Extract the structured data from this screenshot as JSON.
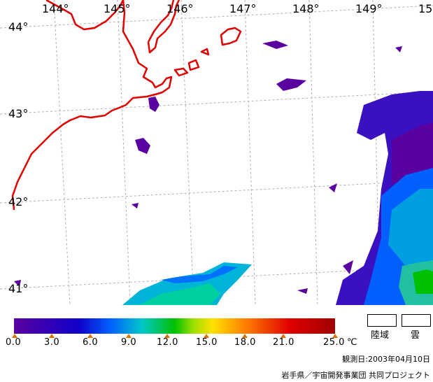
{
  "map": {
    "longitude_labels": [
      "144°",
      "145°",
      "146°",
      "147°",
      "148°",
      "149°",
      "15"
    ],
    "latitude_labels": [
      "44°",
      "43°",
      "42°",
      "41°"
    ],
    "coastline_color": "#e00000",
    "grid_color": "#b0b0b0"
  },
  "legend": {
    "tick_labels": [
      "0.0",
      "3.0",
      "6.0",
      "9.0",
      "12.0",
      "15.0",
      "18.0",
      "21.0",
      "25.0"
    ],
    "unit": "℃",
    "land_label": "陸域",
    "cloud_label": "雲",
    "colors": [
      "#5a00a0",
      "#1000c8",
      "#0060ff",
      "#00c8c8",
      "#00c000",
      "#a0e000",
      "#ffe000",
      "#ff8000",
      "#e00000",
      "#a00000"
    ]
  },
  "observation_date": "観測日:2003年04月10日",
  "credit": "岩手県／宇宙開発事業団 共同プロジェクト"
}
